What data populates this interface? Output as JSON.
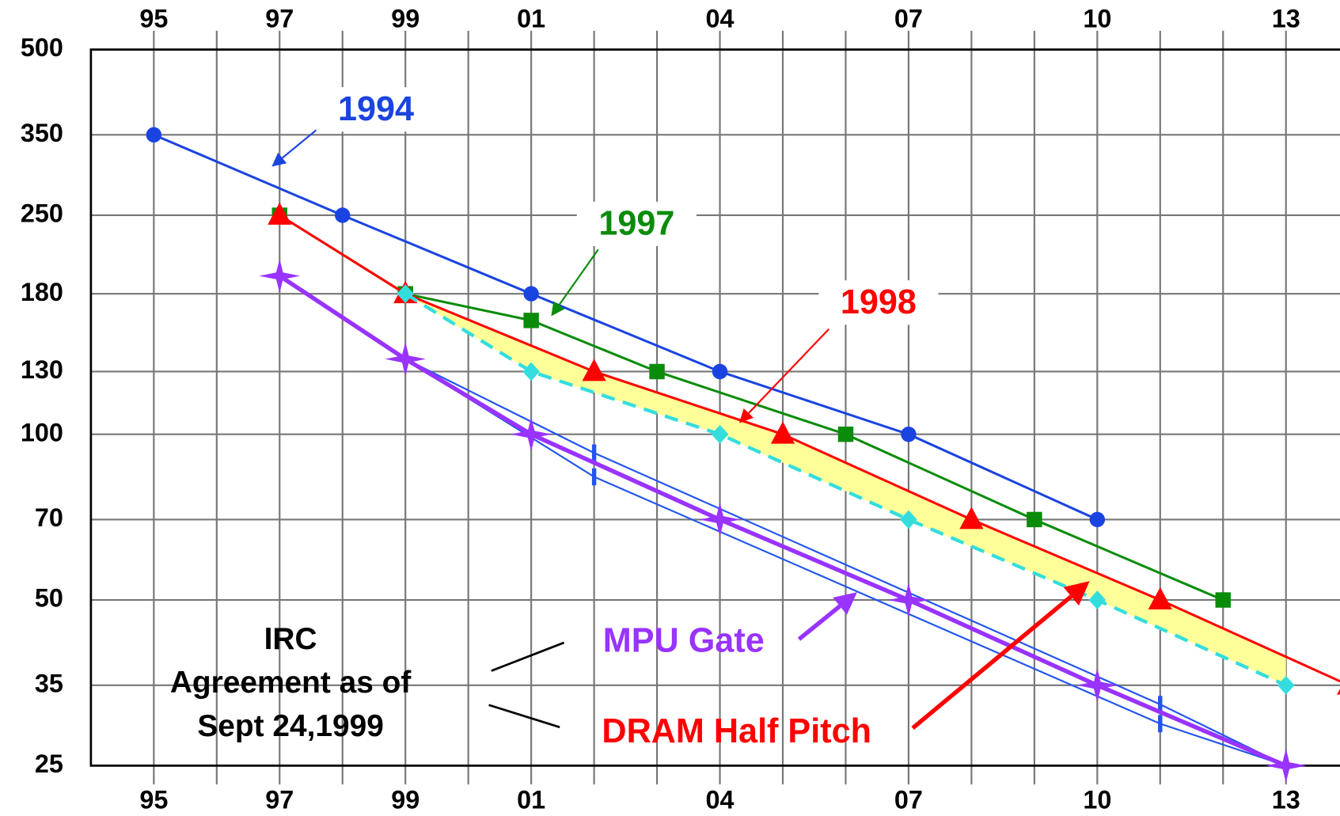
{
  "chart_data": {
    "type": "line",
    "xlim": [
      1994,
      2014
    ],
    "xticks": [
      {
        "value": 1995,
        "label": "95"
      },
      {
        "value": 1997,
        "label": "97"
      },
      {
        "value": 1999,
        "label": "99"
      },
      {
        "value": 2001,
        "label": "01"
      },
      {
        "value": 2004,
        "label": "04"
      },
      {
        "value": 2007,
        "label": "07"
      },
      {
        "value": 2010,
        "label": "10"
      },
      {
        "value": 2013,
        "label": "13"
      }
    ],
    "xgrid_minor": [
      1996,
      1998,
      2000,
      2002,
      2003,
      2005,
      2006,
      2008,
      2009,
      2011,
      2012,
      2014
    ],
    "ylim": [
      25,
      500
    ],
    "yticks": [
      500,
      350,
      250,
      180,
      130,
      100,
      70,
      50,
      35,
      25
    ],
    "y_scale": "log",
    "grid": true,
    "series": [
      {
        "name": "1994",
        "color": "#1a44e0",
        "marker": "circle",
        "x": [
          1995,
          1998,
          2001,
          2004,
          2007,
          2010
        ],
        "values": [
          350,
          250,
          180,
          130,
          100,
          70
        ]
      },
      {
        "name": "1997",
        "color": "#0a8c0a",
        "marker": "square",
        "x": [
          1997,
          1999,
          2001,
          2003,
          2006,
          2009,
          2012
        ],
        "values": [
          250,
          180,
          161,
          130,
          100,
          70,
          50
        ]
      },
      {
        "name": "1998",
        "color": "#ff0000",
        "marker": "triangle",
        "x": [
          1997,
          1999,
          2002,
          2005,
          2008,
          2011,
          2014
        ],
        "values": [
          250,
          180,
          130,
          100,
          70,
          50,
          35
        ]
      },
      {
        "color": "#33dddd",
        "marker": "diamond",
        "dashed": true,
        "x": [
          1999,
          2001,
          2004,
          2007,
          2010,
          2013
        ],
        "values": [
          180,
          130,
          100,
          70,
          50,
          35
        ]
      },
      {
        "color": "#2255ee",
        "marker": "bar",
        "thin": true,
        "x": [
          1999,
          2002,
          2011,
          2013
        ],
        "values": [
          137,
          92.5,
          32.3,
          25
        ]
      },
      {
        "color": "#2255ee",
        "marker": "bar",
        "thin": true,
        "x": [
          1999,
          2002,
          2011,
          2013
        ],
        "values": [
          137,
          83.7,
          29.8,
          25
        ]
      },
      {
        "name": "MPU Gate",
        "color": "#9933ff",
        "marker": "star",
        "thick": true,
        "x": [
          1997,
          1999,
          2001,
          2004,
          2007,
          2010,
          2013
        ],
        "values": [
          194,
          137,
          100,
          70,
          50,
          35,
          25
        ]
      }
    ],
    "band_between": [
      2,
      3
    ],
    "band_color": "#ffff99",
    "annotations": [
      {
        "text": "DRAM Half Pitch",
        "color": "#ff0000"
      },
      {
        "lines": [
          "IRC",
          "Agreement as of",
          "Sept 24,1999"
        ],
        "color": "#000000"
      }
    ]
  }
}
